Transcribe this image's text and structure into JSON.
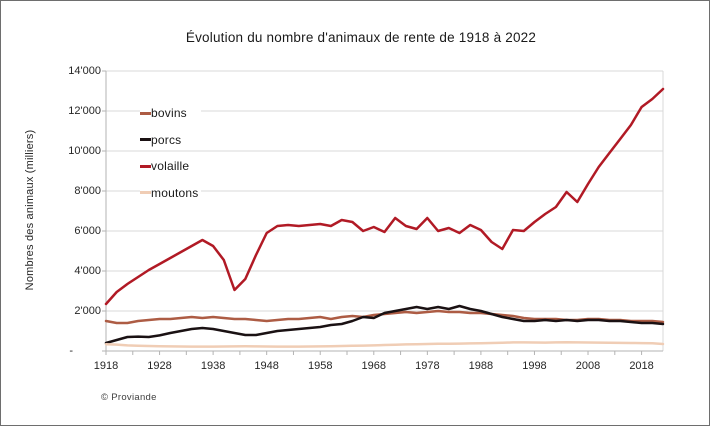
{
  "chart_data": {
    "type": "line",
    "title": "Évolution du nombre d'animaux de rente de 1918 à 2022",
    "ylabel": "Nombres des animaux (milliers)",
    "source": "© Proviande",
    "grid": true,
    "legend_position": "top-left-inside",
    "xlim": [
      1918,
      2022
    ],
    "ylim": [
      0,
      14000
    ],
    "y_ticks": [
      "14'000",
      "12'000",
      "10'000",
      "8'000",
      "6'000",
      "4'000",
      "2'000",
      "-"
    ],
    "x_ticks": [
      "1918",
      "1928",
      "1938",
      "1948",
      "1958",
      "1968",
      "1978",
      "1988",
      "1998",
      "2008",
      "2018"
    ],
    "x": [
      1918,
      1920,
      1922,
      1924,
      1926,
      1928,
      1930,
      1932,
      1934,
      1936,
      1938,
      1940,
      1942,
      1944,
      1946,
      1948,
      1950,
      1952,
      1954,
      1956,
      1958,
      1960,
      1962,
      1964,
      1966,
      1968,
      1970,
      1972,
      1974,
      1976,
      1978,
      1980,
      1982,
      1984,
      1986,
      1988,
      1990,
      1992,
      1994,
      1996,
      1998,
      2000,
      2002,
      2004,
      2006,
      2008,
      2010,
      2012,
      2014,
      2016,
      2018,
      2020,
      2022
    ],
    "series": [
      {
        "name": "bovins",
        "color": "#ad5c44",
        "values": [
          1500,
          1400,
          1400,
          1500,
          1550,
          1600,
          1600,
          1650,
          1700,
          1650,
          1700,
          1650,
          1600,
          1600,
          1550,
          1500,
          1550,
          1600,
          1600,
          1650,
          1700,
          1600,
          1700,
          1750,
          1700,
          1800,
          1850,
          1900,
          1950,
          1900,
          1950,
          2000,
          1950,
          1950,
          1900,
          1900,
          1850,
          1800,
          1750,
          1650,
          1600,
          1600,
          1600,
          1550,
          1550,
          1600,
          1600,
          1550,
          1550,
          1500,
          1500,
          1500,
          1450
        ]
      },
      {
        "name": "porcs",
        "color": "#1a1113",
        "values": [
          400,
          550,
          700,
          720,
          700,
          780,
          900,
          1000,
          1100,
          1150,
          1100,
          1000,
          900,
          800,
          800,
          900,
          1000,
          1050,
          1100,
          1150,
          1200,
          1300,
          1350,
          1500,
          1700,
          1650,
          1900,
          2000,
          2100,
          2200,
          2100,
          2200,
          2100,
          2250,
          2100,
          2000,
          1850,
          1700,
          1600,
          1500,
          1500,
          1550,
          1500,
          1550,
          1500,
          1550,
          1550,
          1500,
          1500,
          1450,
          1400,
          1400,
          1350
        ]
      },
      {
        "name": "volaille",
        "color": "#b11a25",
        "values": [
          2350,
          2950,
          3350,
          3700,
          4050,
          4350,
          4650,
          4950,
          5250,
          5550,
          5250,
          4550,
          3050,
          3600,
          4800,
          5900,
          6250,
          6300,
          6250,
          6300,
          6350,
          6250,
          6550,
          6450,
          6000,
          6200,
          5950,
          6650,
          6250,
          6100,
          6650,
          6000,
          6150,
          5900,
          6300,
          6050,
          5450,
          5100,
          6050,
          6000,
          6450,
          6850,
          7200,
          7950,
          7450,
          8350,
          9200,
          9900,
          10600,
          11300,
          12200,
          12600,
          13100
        ]
      },
      {
        "name": "moutons",
        "color": "#f0cdb5",
        "values": [
          340,
          320,
          280,
          260,
          250,
          240,
          230,
          225,
          220,
          220,
          220,
          225,
          230,
          235,
          230,
          225,
          220,
          220,
          220,
          225,
          230,
          240,
          250,
          260,
          270,
          280,
          300,
          310,
          330,
          340,
          350,
          360,
          365,
          370,
          380,
          390,
          400,
          410,
          430,
          430,
          425,
          420,
          430,
          440,
          430,
          425,
          420,
          410,
          405,
          400,
          395,
          390,
          350
        ]
      }
    ]
  }
}
